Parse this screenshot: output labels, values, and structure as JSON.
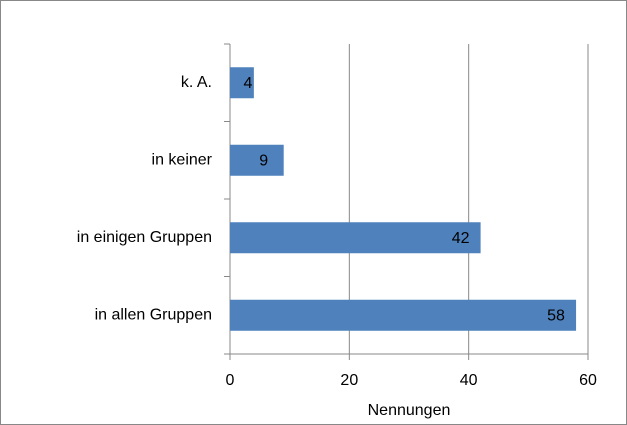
{
  "chart_data": {
    "type": "barh",
    "x_label": "Nennungen",
    "categories": [
      "k. A.",
      "in keiner",
      "in einigen Gruppen",
      "in allen Gruppen"
    ],
    "values": [
      4,
      9,
      42,
      58
    ],
    "color": "#4f81bd",
    "xlim": [
      0,
      60
    ],
    "xticks": [
      0,
      20,
      40,
      60
    ],
    "grid": true
  }
}
